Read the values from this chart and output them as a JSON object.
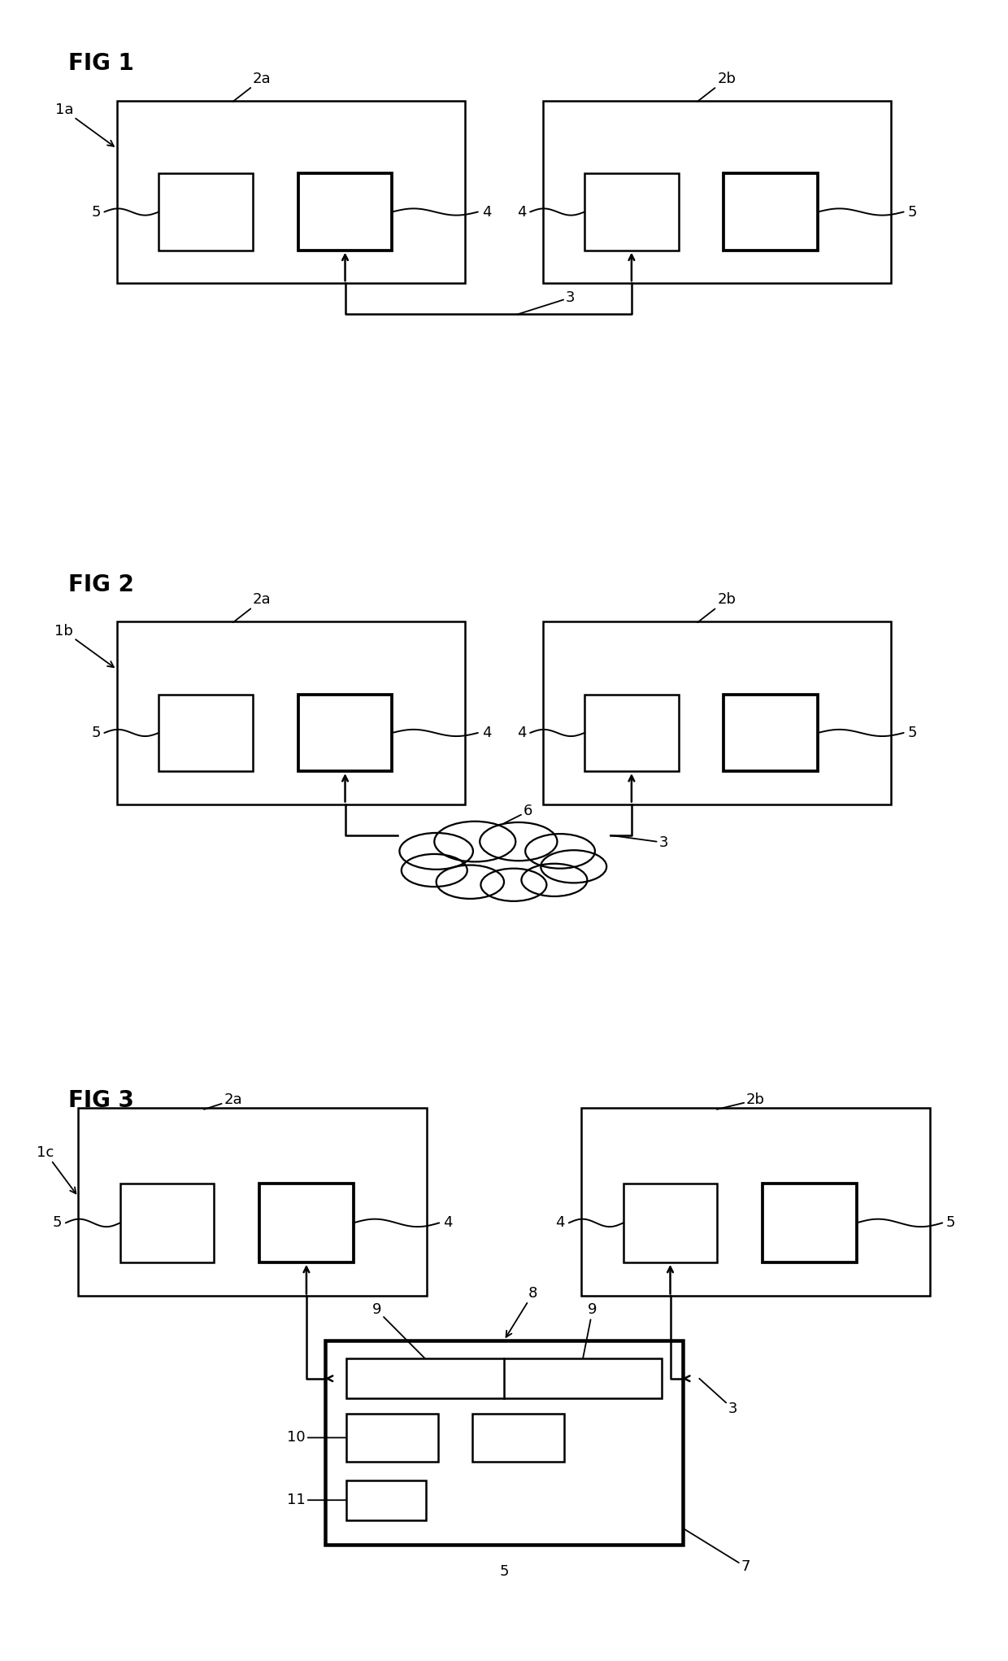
{
  "background_color": "#ffffff",
  "line_color": "#000000",
  "linewidth": 1.8,
  "fig_title_fontsize": 20,
  "label_fontsize": 13,
  "figures": [
    "FIG 1",
    "FIG 2",
    "FIG 3"
  ],
  "fig1": {
    "title": "FIG 1",
    "lbl_system": "1a",
    "lbl_left": "2a",
    "lbl_right": "2b",
    "lbl_bus": "3",
    "lbl_4_left": "4",
    "lbl_5_left": "5",
    "lbl_4_right": "4",
    "lbl_5_right": "5"
  },
  "fig2": {
    "title": "FIG 2",
    "lbl_system": "1b",
    "lbl_left": "2a",
    "lbl_right": "2b",
    "lbl_bus": "3",
    "lbl_cloud": "6",
    "lbl_4_left": "4",
    "lbl_5_left": "5",
    "lbl_4_right": "4",
    "lbl_5_right": "5"
  },
  "fig3": {
    "title": "FIG 3",
    "lbl_system": "1c",
    "lbl_left": "2a",
    "lbl_right": "2b",
    "lbl_bus": "3",
    "lbl_hub": "7",
    "lbl_8": "8",
    "lbl_9a": "9",
    "lbl_9b": "9",
    "lbl_10": "10",
    "lbl_11": "11",
    "lbl_5_bottom": "5",
    "lbl_4_left": "4",
    "lbl_5_left": "5",
    "lbl_4_right": "4",
    "lbl_5_right": "5"
  }
}
